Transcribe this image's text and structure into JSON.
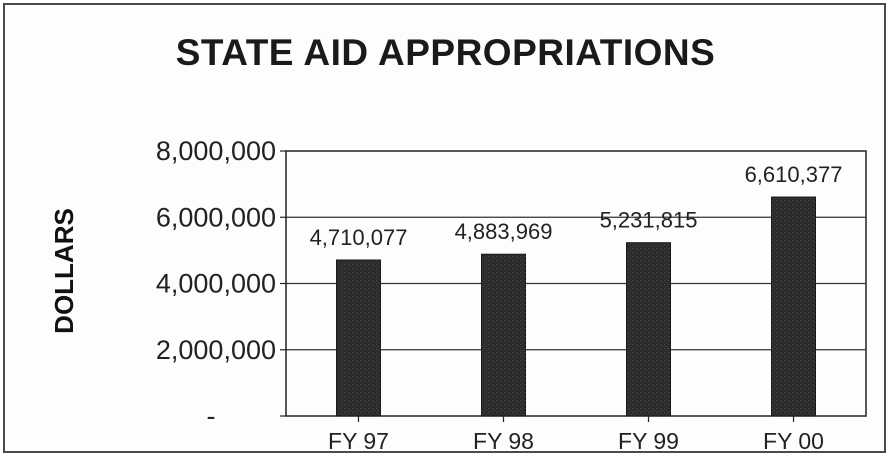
{
  "chart_data": {
    "type": "bar",
    "title": "STATE AID APPROPRIATIONS",
    "xlabel": "",
    "ylabel": "DOLLARS",
    "categories": [
      "FY  97",
      "FY 98",
      "FY 99",
      "FY 00"
    ],
    "values": [
      4710077,
      4883969,
      5231815,
      6610377
    ],
    "data_labels": [
      "4,710,077",
      "4,883,969",
      "5,231,815",
      "6,610,377"
    ],
    "ylim": [
      0,
      8000000
    ],
    "yticks": [
      0,
      2000000,
      4000000,
      6000000,
      8000000
    ],
    "ytick_labels": [
      "-",
      "2,000,000",
      "4,000,000",
      "6,000,000",
      "8,000,000"
    ],
    "grid": true,
    "legend": "none",
    "bar_color": "#2b2b2b"
  }
}
